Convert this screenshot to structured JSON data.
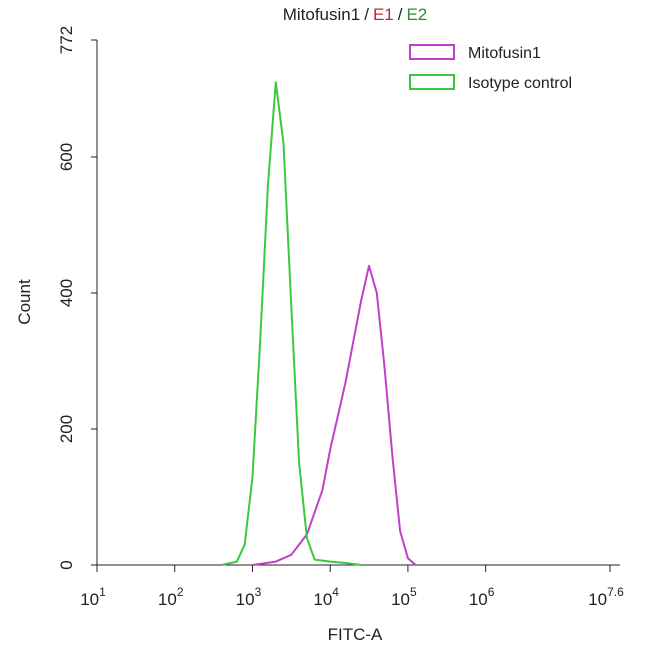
{
  "chart_data": {
    "type": "line",
    "title_parts": [
      {
        "text": "Mitofusin1",
        "color": "#222222"
      },
      {
        "text": "/",
        "color": "#222222"
      },
      {
        "text": "E1",
        "color": "#c0282d"
      },
      {
        "text": "/",
        "color": "#222222"
      },
      {
        "text": "E2",
        "color": "#2e8b2e"
      }
    ],
    "x_label": "FITC-A",
    "y_label": "Count",
    "xscale": "log",
    "xlim": [
      10,
      39810717
    ],
    "xticks": [
      {
        "value": 10,
        "label": "10",
        "exp": "1"
      },
      {
        "value": 100,
        "label": "10",
        "exp": "2"
      },
      {
        "value": 1000,
        "label": "10",
        "exp": "3"
      },
      {
        "value": 10000,
        "label": "10",
        "exp": "4"
      },
      {
        "value": 100000,
        "label": "10",
        "exp": "5"
      },
      {
        "value": 1000000,
        "label": "10",
        "exp": "6"
      },
      {
        "value": 39810717,
        "label": "10",
        "exp": "7.6"
      }
    ],
    "ylim": [
      0,
      772
    ],
    "yticks": [
      0,
      200,
      400,
      600,
      772
    ],
    "legend": "top-right",
    "series": [
      {
        "name": "Mitofusin1",
        "color": "#c040c8",
        "x": [
          1000,
          1995,
          3162,
          5012,
          7943,
          10000,
          12589,
          15849,
          19953,
          25119,
          31623,
          39811,
          50119,
          63096,
          79433,
          100000,
          125893
        ],
        "values": [
          0,
          5,
          15,
          45,
          110,
          170,
          220,
          270,
          330,
          390,
          440,
          400,
          290,
          160,
          50,
          10,
          0
        ]
      },
      {
        "name": "Isotype control",
        "color": "#3cc83c",
        "x": [
          398,
          631,
          794,
          1000,
          1259,
          1585,
          1995,
          2512,
          3162,
          3981,
          5012,
          6310,
          10000,
          15849,
          25119
        ],
        "values": [
          0,
          5,
          30,
          130,
          330,
          560,
          710,
          620,
          380,
          150,
          40,
          8,
          5,
          3,
          0
        ]
      }
    ]
  }
}
